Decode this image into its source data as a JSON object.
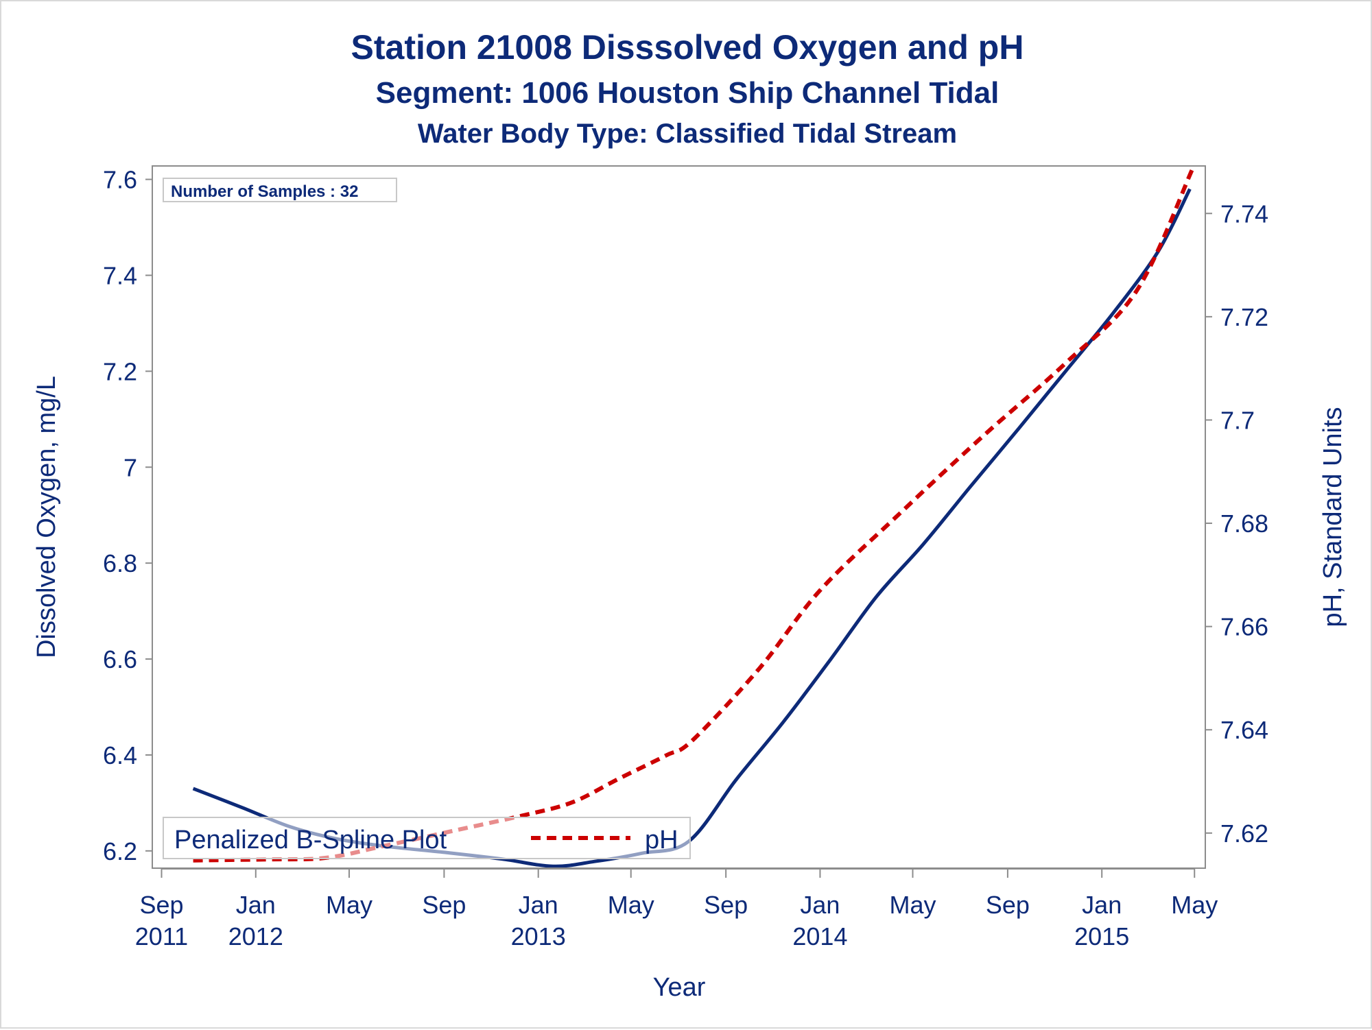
{
  "chart_data": {
    "type": "line",
    "title": "Station 21008   Disssolved Oxygen and pH",
    "subtitle": "Segment: 1006  Houston Ship Channel Tidal",
    "subtitle2": "Water Body Type: Classified Tidal Stream",
    "xlabel": "Year",
    "ylabel": "Dissolved Oxygen, mg/L",
    "y2label": "pH, Standard Units",
    "annotation": "Number of Samples : 32",
    "legend_title": "Penalized B-Spline Plot",
    "legend_position": "bottom-left",
    "x_ticks": [
      {
        "date": "2011-09",
        "label1": "Sep",
        "label2": "2011"
      },
      {
        "date": "2012-01",
        "label1": "Jan",
        "label2": "2012"
      },
      {
        "date": "2012-05",
        "label1": "May",
        "label2": ""
      },
      {
        "date": "2012-09",
        "label1": "Sep",
        "label2": ""
      },
      {
        "date": "2013-01",
        "label1": "Jan",
        "label2": "2013"
      },
      {
        "date": "2013-05",
        "label1": "May",
        "label2": ""
      },
      {
        "date": "2013-09",
        "label1": "Sep",
        "label2": ""
      },
      {
        "date": "2014-01",
        "label1": "Jan",
        "label2": "2014"
      },
      {
        "date": "2014-05",
        "label1": "May",
        "label2": ""
      },
      {
        "date": "2014-09",
        "label1": "Sep",
        "label2": ""
      },
      {
        "date": "2015-01",
        "label1": "Jan",
        "label2": "2015"
      },
      {
        "date": "2015-05",
        "label1": "May",
        "label2": ""
      }
    ],
    "xlim": [
      "2011-08-20",
      "2015-05-15"
    ],
    "ylim": [
      6.164,
      7.628
    ],
    "yticks": [
      6.2,
      6.4,
      6.6,
      6.8,
      7,
      7.2,
      7.4,
      7.6
    ],
    "y2lim": [
      7.6132,
      7.7492
    ],
    "y2ticks": [
      7.62,
      7.64,
      7.66,
      7.68,
      7.7,
      7.72,
      7.74
    ],
    "grid": false,
    "series": [
      {
        "axis": "left",
        "color": "#0d2a78",
        "dash": "solid",
        "points": [
          {
            "x": "2011-10-12",
            "y": 6.33
          },
          {
            "x": "2011-12-15",
            "y": 6.29
          },
          {
            "x": "2012-02-15",
            "y": 6.25
          },
          {
            "x": "2012-04-15",
            "y": 6.225
          },
          {
            "x": "2012-06-15",
            "y": 6.21
          },
          {
            "x": "2012-09-01",
            "y": 6.197
          },
          {
            "x": "2012-11-15",
            "y": 6.183
          },
          {
            "x": "2013-01-20",
            "y": 6.168
          },
          {
            "x": "2013-03-15",
            "y": 6.178
          },
          {
            "x": "2013-05-15",
            "y": 6.195
          },
          {
            "x": "2013-07-15",
            "y": 6.22
          },
          {
            "x": "2013-09-15",
            "y": 6.35
          },
          {
            "x": "2013-11-15",
            "y": 6.47
          },
          {
            "x": "2014-01-15",
            "y": 6.6
          },
          {
            "x": "2014-03-15",
            "y": 6.73
          },
          {
            "x": "2014-05-15",
            "y": 6.84
          },
          {
            "x": "2014-07-15",
            "y": 6.96
          },
          {
            "x": "2014-09-15",
            "y": 7.08
          },
          {
            "x": "2014-11-15",
            "y": 7.2
          },
          {
            "x": "2015-01-15",
            "y": 7.32
          },
          {
            "x": "2015-03-15",
            "y": 7.45
          },
          {
            "x": "2015-04-25",
            "y": 7.58
          }
        ]
      },
      {
        "name": "pH",
        "axis": "right",
        "color": "#cc0000",
        "dash": "dashed",
        "points": [
          {
            "x": "2011-10-12",
            "y": 7.6147
          },
          {
            "x": "2012-01-15",
            "y": 7.6149
          },
          {
            "x": "2012-04-01",
            "y": 7.6152
          },
          {
            "x": "2012-06-15",
            "y": 7.6175
          },
          {
            "x": "2012-09-15",
            "y": 7.6205
          },
          {
            "x": "2012-12-15",
            "y": 7.6235
          },
          {
            "x": "2013-02-15",
            "y": 7.626
          },
          {
            "x": "2013-04-15",
            "y": 7.6305
          },
          {
            "x": "2013-06-15",
            "y": 7.635
          },
          {
            "x": "2013-07-20",
            "y": 7.638
          },
          {
            "x": "2013-10-15",
            "y": 7.652
          },
          {
            "x": "2014-01-01",
            "y": 7.667
          },
          {
            "x": "2014-04-15",
            "y": 7.682
          },
          {
            "x": "2014-08-01",
            "y": 7.697
          },
          {
            "x": "2014-11-15",
            "y": 7.711
          },
          {
            "x": "2015-02-15",
            "y": 7.725
          },
          {
            "x": "2015-04-28",
            "y": 7.7485
          }
        ]
      }
    ]
  }
}
